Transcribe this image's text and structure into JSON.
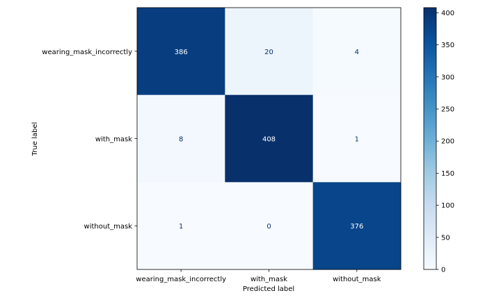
{
  "chart_data": {
    "type": "heatmap",
    "title": "",
    "xlabel": "Predicted label",
    "ylabel": "True label",
    "x_categories": [
      "wearing_mask_incorrectly",
      "with_mask",
      "without_mask"
    ],
    "y_categories": [
      "wearing_mask_incorrectly",
      "with_mask",
      "without_mask"
    ],
    "values": [
      [
        386,
        20,
        4
      ],
      [
        8,
        408,
        1
      ],
      [
        1,
        0,
        376
      ]
    ],
    "colormap": "Blues",
    "colorbar": {
      "min": 0,
      "max": 408,
      "ticks": [
        "0",
        "50",
        "100",
        "150",
        "200",
        "250",
        "300",
        "350",
        "400"
      ],
      "low_color": "#f7fbff",
      "high_color": "#08306b"
    },
    "grid": false
  }
}
